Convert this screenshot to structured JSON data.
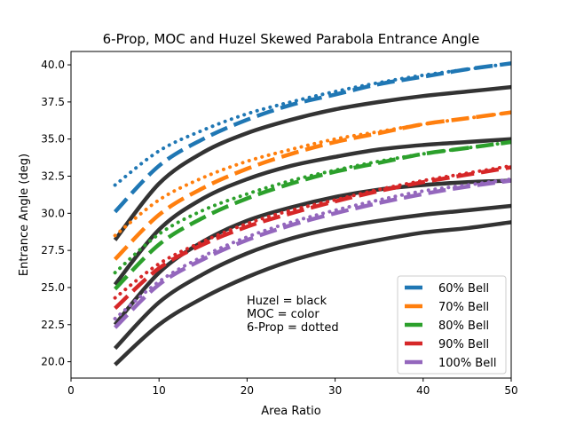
{
  "chart_data": {
    "type": "line",
    "title": "6-Prop, MOC and Huzel Skewed Parabola Entrance Angle",
    "xlabel": "Area Ratio",
    "ylabel": "Entrance Angle (deg)",
    "xlim": [
      0,
      50
    ],
    "ylim": [
      18.9,
      40.9
    ],
    "xticks": [
      0,
      10,
      20,
      30,
      40,
      50
    ],
    "yticks": [
      20.0,
      22.5,
      25.0,
      27.5,
      30.0,
      32.5,
      35.0,
      37.5,
      40.0
    ],
    "ytick_labels": [
      "20.0",
      "22.5",
      "25.0",
      "27.5",
      "30.0",
      "32.5",
      "35.0",
      "37.5",
      "40.0"
    ],
    "grid": false,
    "legend_position": "bottom-right",
    "annotation": [
      "Huzel = black",
      "MOC = color",
      "6-Prop = dotted"
    ],
    "x": [
      5,
      10,
      15,
      20,
      25,
      30,
      35,
      40,
      45,
      50
    ],
    "series": [
      {
        "name": "60% Bell",
        "color": "#1f77b4",
        "style": "dashed",
        "moc": [
          30.1,
          33.2,
          35.0,
          36.3,
          37.3,
          38.0,
          38.7,
          39.2,
          39.7,
          40.1
        ],
        "six_prop": [
          31.9,
          34.2,
          35.6,
          36.7,
          37.5,
          38.2,
          38.8,
          39.3,
          39.7,
          40.1
        ],
        "huzel": [
          28.2,
          32.0,
          34.1,
          35.4,
          36.3,
          37.0,
          37.5,
          37.9,
          38.2,
          38.5
        ]
      },
      {
        "name": "70% Bell",
        "color": "#ff7f0e",
        "style": "dashed",
        "moc": [
          26.9,
          29.9,
          31.7,
          33.0,
          34.0,
          34.8,
          35.4,
          36.0,
          36.4,
          36.8
        ],
        "six_prop": [
          28.5,
          30.9,
          32.4,
          33.5,
          34.3,
          35.0,
          35.5,
          36.0,
          36.4,
          36.8
        ],
        "huzel": [
          25.2,
          28.9,
          31.0,
          32.3,
          33.2,
          33.8,
          34.3,
          34.6,
          34.8,
          35.0
        ]
      },
      {
        "name": "80% Bell",
        "color": "#2ca02c",
        "style": "dashed",
        "moc": [
          24.9,
          27.9,
          29.7,
          31.0,
          32.0,
          32.8,
          33.4,
          34.0,
          34.4,
          34.8
        ],
        "six_prop": [
          26.0,
          28.6,
          30.2,
          31.3,
          32.2,
          32.9,
          33.5,
          34.0,
          34.4,
          34.8
        ],
        "huzel": [
          22.5,
          26.0,
          28.1,
          29.5,
          30.4,
          31.1,
          31.6,
          31.9,
          32.1,
          32.2
        ]
      },
      {
        "name": "90% Bell",
        "color": "#d62728",
        "style": "dashed",
        "moc": [
          23.6,
          26.3,
          27.9,
          29.1,
          30.0,
          30.8,
          31.5,
          32.1,
          32.6,
          33.1
        ],
        "six_prop": [
          24.3,
          26.6,
          28.1,
          29.3,
          30.2,
          30.9,
          31.6,
          32.2,
          32.7,
          33.2
        ],
        "huzel": [
          20.9,
          24.0,
          25.9,
          27.3,
          28.3,
          29.0,
          29.5,
          29.9,
          30.2,
          30.5
        ]
      },
      {
        "name": "100% Bell",
        "color": "#9467bd",
        "style": "dashed",
        "moc": [
          22.3,
          25.2,
          26.9,
          28.2,
          29.2,
          30.0,
          30.7,
          31.3,
          31.8,
          32.2
        ],
        "six_prop": [
          22.9,
          25.4,
          27.1,
          28.4,
          29.4,
          30.2,
          30.9,
          31.5,
          31.9,
          32.3
        ],
        "huzel": [
          19.8,
          22.5,
          24.3,
          25.7,
          26.8,
          27.6,
          28.2,
          28.7,
          29.0,
          29.4
        ]
      }
    ]
  }
}
